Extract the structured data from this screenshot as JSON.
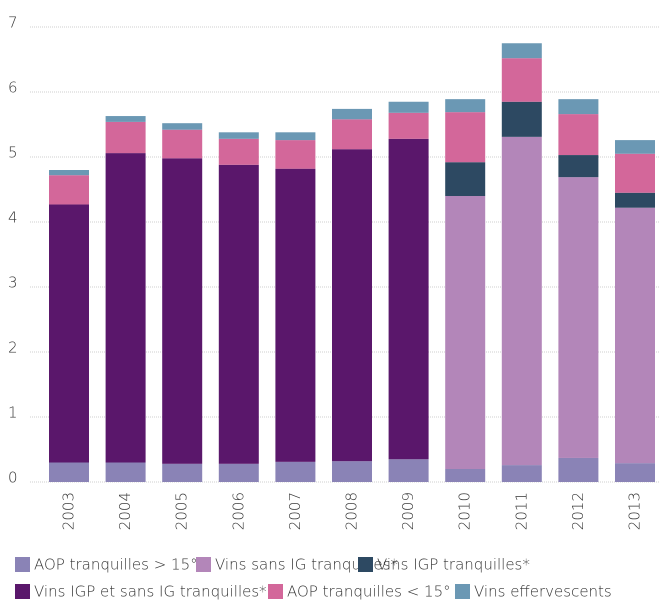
{
  "chart_data": {
    "type": "stacked_bar",
    "categories": [
      "2003",
      "2004",
      "2005",
      "2006",
      "2007",
      "2008",
      "2009",
      "2010",
      "2011",
      "2012",
      "2013"
    ],
    "series": [
      {
        "name": "AOP tranquilles > 15°",
        "color": "#8a83b6",
        "values": [
          0.3,
          0.3,
          0.28,
          0.28,
          0.31,
          0.32,
          0.35,
          0.2,
          0.26,
          0.37,
          0.29
        ]
      },
      {
        "name": "Vins sans IG tranquilles*",
        "color": "#b386b9",
        "values": [
          null,
          null,
          null,
          null,
          null,
          null,
          null,
          4.2,
          5.05,
          4.32,
          3.93
        ]
      },
      {
        "name": "Vins IGP tranquilles*",
        "color": "#2d4962",
        "values": [
          null,
          null,
          null,
          null,
          null,
          null,
          null,
          0.52,
          0.54,
          0.34,
          0.23
        ]
      },
      {
        "name": "Vins IGP et sans IG tranquilles*",
        "color": "#5a176b",
        "values": [
          3.97,
          4.76,
          4.7,
          4.6,
          4.51,
          4.8,
          4.93,
          null,
          null,
          null,
          null
        ]
      },
      {
        "name": "AOP tranquilles < 15°",
        "color": "#d3679a",
        "values": [
          0.45,
          0.48,
          0.44,
          0.4,
          0.44,
          0.46,
          0.4,
          0.77,
          0.67,
          0.63,
          0.6
        ]
      },
      {
        "name": "Vins effervescents",
        "color": "#6b98b4",
        "values": [
          0.08,
          0.09,
          0.1,
          0.1,
          0.12,
          0.16,
          0.17,
          0.2,
          0.23,
          0.23,
          0.21
        ]
      }
    ],
    "ylim": [
      0,
      7
    ],
    "yticks": [
      0,
      1,
      2,
      3,
      4,
      5,
      6,
      7
    ],
    "grid": true
  }
}
